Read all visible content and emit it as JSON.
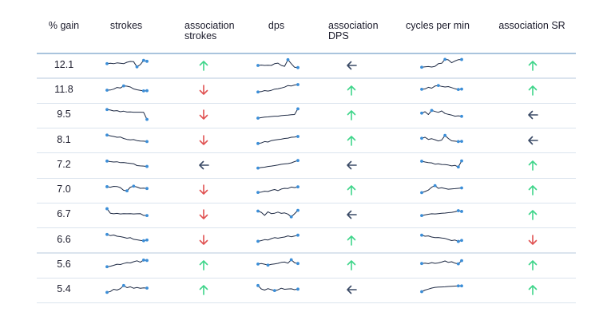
{
  "headers": {
    "gain": "% gain",
    "strokes": "strokes",
    "assoc_strokes": "association\nstrokes",
    "dps": "dps",
    "assoc_dps": "association\nDPS",
    "cpm": "cycles per min",
    "assoc_sr": "association SR"
  },
  "colors": {
    "up": "#3fd58a",
    "down": "#e05252",
    "left": "#3a4a66",
    "sparkline": "#1e2a44",
    "marker": "#3b8ed8",
    "rule": "#dbe4ee"
  },
  "chart_data": {
    "type": "table",
    "columns": [
      "% gain",
      "strokes",
      "association strokes",
      "dps",
      "association DPS",
      "cycles per min",
      "association SR"
    ],
    "rows": [
      {
        "gain": "12.1",
        "strokes": [
          5,
          5.2,
          5,
          5.4,
          5.2,
          5,
          5.8,
          6.2,
          6.1,
          3.2,
          4.5,
          6.8,
          6.3
        ],
        "assoc_strokes": "up",
        "dps": [
          4,
          4.2,
          4,
          4.1,
          4,
          5,
          5.3,
          4,
          3.5,
          7.2,
          5,
          3,
          2.8
        ],
        "assoc_dps": "left",
        "cpm": [
          3,
          3.2,
          3.4,
          3.1,
          3.5,
          5,
          5.2,
          7.4,
          7.1,
          5.5,
          6.5,
          7.2,
          7.3
        ],
        "assoc_sr": "up"
      },
      {
        "gain": "11.8",
        "strokes": [
          4,
          4.1,
          4.6,
          5.5,
          5.2,
          6.4,
          6.2,
          5.8,
          4.7,
          4.2,
          3.9,
          3.6,
          3.7
        ],
        "assoc_strokes": "down",
        "dps": [
          3,
          3.2,
          3.8,
          3.5,
          3.9,
          4.6,
          4.8,
          5.2,
          5.7,
          6.6,
          6.3,
          6.9,
          7.1
        ],
        "assoc_dps": "up",
        "cpm": [
          4.5,
          4.7,
          5.6,
          5.1,
          6.3,
          6.6,
          6.1,
          5.8,
          6,
          5.4,
          4.8,
          4.4,
          4.6
        ],
        "assoc_sr": "up"
      },
      {
        "gain": "9.5",
        "strokes": [
          7,
          6.7,
          6.2,
          6.4,
          5.8,
          6.1,
          5.6,
          5.7,
          5.5,
          5.5,
          5.5,
          5.4,
          1.5
        ],
        "assoc_strokes": "down",
        "dps": [
          2.2,
          2.5,
          2.8,
          2.9,
          3.1,
          3.3,
          3.3,
          3.6,
          3.8,
          3.9,
          4.1,
          4.2,
          7.4
        ],
        "assoc_dps": "up",
        "cpm": [
          5,
          5.8,
          4.2,
          6.5,
          5.9,
          5.4,
          6.2,
          4.8,
          4.3,
          3.9,
          3.3,
          3.5,
          3.2
        ],
        "assoc_sr": "left"
      },
      {
        "gain": "8.1",
        "strokes": [
          7,
          6.6,
          6.2,
          5.8,
          5.9,
          5.1,
          4.6,
          4.3,
          4.5,
          3.9,
          3.7,
          3.6,
          3.4
        ],
        "assoc_strokes": "down",
        "dps": [
          2.3,
          2.6,
          3.4,
          3.1,
          3.9,
          4.2,
          4.5,
          4.7,
          5.1,
          5.3,
          5.8,
          5.9,
          6.2
        ],
        "assoc_dps": "up",
        "cpm": [
          5.2,
          5.8,
          4.6,
          5,
          4.4,
          3.7,
          4.2,
          6.8,
          5.1,
          3.8,
          3.6,
          3.4,
          3.5
        ],
        "assoc_sr": "left"
      },
      {
        "gain": "7.2",
        "strokes": [
          6.3,
          6,
          5.8,
          5.9,
          5.4,
          5.5,
          5.2,
          5,
          4.8,
          3.8,
          3.6,
          3.5,
          3.3
        ],
        "assoc_strokes": "left",
        "dps": [
          2.4,
          2.7,
          2.9,
          3.3,
          3.5,
          3.8,
          4.1,
          4.5,
          4.7,
          4.9,
          5.3,
          6,
          6.6
        ],
        "assoc_dps": "left",
        "cpm": [
          6.2,
          5.8,
          5.4,
          5.3,
          4.6,
          4.8,
          4.4,
          4.3,
          4.1,
          3.6,
          3.9,
          3,
          6.4
        ],
        "assoc_sr": "up"
      },
      {
        "gain": "7.0",
        "strokes": [
          5.8,
          5.5,
          6,
          5.9,
          5.3,
          3.8,
          3.5,
          5.5,
          6.1,
          5.6,
          4.9,
          5,
          4.8
        ],
        "assoc_strokes": "down",
        "dps": [
          2.6,
          2.8,
          3.3,
          3.1,
          3.8,
          4.2,
          3.6,
          4.5,
          4.9,
          4.8,
          5.6,
          5.3,
          5.7
        ],
        "assoc_dps": "up",
        "cpm": [
          2.5,
          3.1,
          3.9,
          5.5,
          6.4,
          4.9,
          5.2,
          4.8,
          4.4,
          4.6,
          4.7,
          4.9,
          5.1
        ],
        "assoc_sr": "up"
      },
      {
        "gain": "6.7",
        "strokes": [
          7.3,
          4.8,
          4.5,
          4.7,
          4.4,
          4.6,
          4.5,
          4.6,
          4.4,
          4.5,
          4.6,
          3.6,
          3.5
        ],
        "assoc_strokes": "down",
        "dps": [
          6,
          5.3,
          3.6,
          5.6,
          4.6,
          4.8,
          5.4,
          4.7,
          5,
          4.3,
          2.8,
          4.5,
          6.4
        ],
        "assoc_dps": "left",
        "cpm": [
          3.5,
          3.9,
          4.2,
          4.5,
          4.4,
          4.6,
          4.8,
          4.9,
          5.1,
          5.3,
          5.6,
          6.2,
          5.8
        ],
        "assoc_sr": "up"
      },
      {
        "gain": "6.6",
        "strokes": [
          7.2,
          6.6,
          6.9,
          6.2,
          6,
          5.6,
          5.1,
          5.4,
          4.5,
          4.2,
          3.9,
          3.7,
          4.1
        ],
        "assoc_strokes": "down",
        "dps": [
          3.4,
          3.8,
          4.3,
          4.1,
          4.9,
          5.4,
          5.1,
          5.5,
          5.8,
          6.4,
          5.9,
          6.3,
          6.8
        ],
        "assoc_dps": "up",
        "cpm": [
          6.8,
          6.2,
          6.4,
          5.8,
          5.4,
          5.5,
          5.2,
          5,
          4.4,
          3.8,
          4.1,
          3.3,
          3.9
        ],
        "assoc_sr": "down"
      },
      {
        "gain": "5.6",
        "strokes": [
          3,
          3.3,
          3.8,
          4.4,
          4.2,
          4.8,
          5.3,
          5.1,
          5.8,
          6.3,
          5.5,
          6.7,
          6.5
        ],
        "assoc_strokes": "up",
        "dps": [
          4.5,
          4.8,
          4.4,
          3.9,
          4.3,
          4.6,
          4.9,
          5.4,
          5.6,
          5,
          6.9,
          5.2,
          4.8
        ],
        "assoc_dps": "up",
        "cpm": [
          4.8,
          5,
          4.7,
          5.3,
          4.9,
          5.1,
          5.6,
          6.2,
          5.4,
          5.8,
          5,
          4.6,
          6.4
        ],
        "assoc_sr": "up"
      },
      {
        "gain": "5.4",
        "strokes": [
          2.5,
          3,
          4.2,
          3.8,
          4.6,
          6.3,
          5.1,
          5.6,
          4.8,
          5.2,
          4.8,
          5,
          4.9
        ],
        "assoc_strokes": "up",
        "dps": [
          6.3,
          4.4,
          3.8,
          4.6,
          4,
          3.5,
          3.9,
          4.8,
          4.2,
          4.4,
          4.5,
          4,
          4.3
        ],
        "assoc_dps": "left",
        "cpm": [
          2.9,
          3.8,
          4.3,
          4.9,
          5.3,
          5.4,
          5.5,
          5.6,
          5.8,
          5.9,
          6,
          6.1,
          6.1
        ],
        "assoc_sr": "up"
      }
    ]
  }
}
